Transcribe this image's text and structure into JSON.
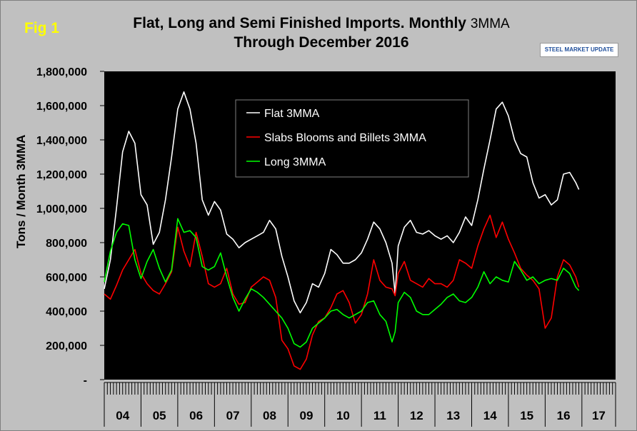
{
  "figure_label": "Fig 1",
  "title_main": "Flat, Long and Semi Finished Imports. Monthly",
  "title_suffix": "3MMA",
  "subtitle": "Through December 2016",
  "logo_text": "STEEL MARKET UPDATE",
  "colors": {
    "background": "#c0c0c0",
    "plot_area": "#000000",
    "flat": "#ffffff",
    "slabs": "#ff0000",
    "long": "#00ff00",
    "figure_label": "#ffff00"
  },
  "chart_data": {
    "type": "line",
    "title": "Flat, Long and Semi Finished Imports. Monthly 3MMA Through December 2016",
    "xlabel": "",
    "ylabel": "Tons / Month 3MMA",
    "ylim": [
      0,
      1800000
    ],
    "y_ticks": [
      0,
      200000,
      400000,
      600000,
      800000,
      1000000,
      1200000,
      1400000,
      1600000,
      1800000
    ],
    "y_tick_labels": [
      "-",
      "200,000",
      "400,000",
      "600,000",
      "800,000",
      "1,000,000",
      "1,200,000",
      "1,400,000",
      "1,600,000",
      "1,800,000"
    ],
    "x_start": "2004-01",
    "x_end": "2016-12",
    "year_labels": [
      "04",
      "05",
      "06",
      "07",
      "08",
      "09",
      "10",
      "11",
      "12",
      "13",
      "14",
      "15",
      "16",
      "17"
    ],
    "grid": false,
    "legend_position": "top-center",
    "series": [
      {
        "name": "Flat 3MMA",
        "color": "#ffffff",
        "points": [
          [
            "2004-01",
            530000
          ],
          [
            "2004-03",
            700000
          ],
          [
            "2004-05",
            1000000
          ],
          [
            "2004-07",
            1330000
          ],
          [
            "2004-09",
            1450000
          ],
          [
            "2004-11",
            1380000
          ],
          [
            "2005-01",
            1080000
          ],
          [
            "2005-03",
            1020000
          ],
          [
            "2005-05",
            790000
          ],
          [
            "2005-07",
            860000
          ],
          [
            "2005-09",
            1050000
          ],
          [
            "2005-11",
            1300000
          ],
          [
            "2006-01",
            1580000
          ],
          [
            "2006-03",
            1680000
          ],
          [
            "2006-05",
            1580000
          ],
          [
            "2006-07",
            1380000
          ],
          [
            "2006-09",
            1050000
          ],
          [
            "2006-11",
            960000
          ],
          [
            "2007-01",
            1040000
          ],
          [
            "2007-03",
            990000
          ],
          [
            "2007-05",
            850000
          ],
          [
            "2007-07",
            820000
          ],
          [
            "2007-09",
            770000
          ],
          [
            "2007-11",
            800000
          ],
          [
            "2008-01",
            820000
          ],
          [
            "2008-03",
            840000
          ],
          [
            "2008-05",
            860000
          ],
          [
            "2008-07",
            930000
          ],
          [
            "2008-09",
            880000
          ],
          [
            "2008-11",
            720000
          ],
          [
            "2009-01",
            600000
          ],
          [
            "2009-03",
            460000
          ],
          [
            "2009-05",
            390000
          ],
          [
            "2009-07",
            450000
          ],
          [
            "2009-09",
            560000
          ],
          [
            "2009-11",
            540000
          ],
          [
            "2010-01",
            620000
          ],
          [
            "2010-03",
            760000
          ],
          [
            "2010-05",
            730000
          ],
          [
            "2010-07",
            680000
          ],
          [
            "2010-09",
            680000
          ],
          [
            "2010-11",
            700000
          ],
          [
            "2011-01",
            740000
          ],
          [
            "2011-03",
            820000
          ],
          [
            "2011-05",
            920000
          ],
          [
            "2011-07",
            880000
          ],
          [
            "2011-09",
            800000
          ],
          [
            "2011-11",
            680000
          ],
          [
            "2011-12",
            500000
          ],
          [
            "2012-01",
            780000
          ],
          [
            "2012-03",
            890000
          ],
          [
            "2012-05",
            930000
          ],
          [
            "2012-07",
            860000
          ],
          [
            "2012-09",
            850000
          ],
          [
            "2012-11",
            870000
          ],
          [
            "2013-01",
            840000
          ],
          [
            "2013-03",
            820000
          ],
          [
            "2013-05",
            840000
          ],
          [
            "2013-07",
            800000
          ],
          [
            "2013-09",
            860000
          ],
          [
            "2013-11",
            950000
          ],
          [
            "2014-01",
            900000
          ],
          [
            "2014-03",
            1050000
          ],
          [
            "2014-05",
            1230000
          ],
          [
            "2014-07",
            1400000
          ],
          [
            "2014-09",
            1580000
          ],
          [
            "2014-11",
            1620000
          ],
          [
            "2015-01",
            1540000
          ],
          [
            "2015-03",
            1400000
          ],
          [
            "2015-05",
            1320000
          ],
          [
            "2015-07",
            1300000
          ],
          [
            "2015-09",
            1150000
          ],
          [
            "2015-11",
            1060000
          ],
          [
            "2016-01",
            1080000
          ],
          [
            "2016-03",
            1020000
          ],
          [
            "2016-05",
            1050000
          ],
          [
            "2016-07",
            1200000
          ],
          [
            "2016-09",
            1210000
          ],
          [
            "2016-11",
            1150000
          ],
          [
            "2016-12",
            1110000
          ]
        ]
      },
      {
        "name": "Slabs Blooms and Billets 3MMA",
        "color": "#ff0000",
        "points": [
          [
            "2004-01",
            500000
          ],
          [
            "2004-03",
            470000
          ],
          [
            "2004-05",
            550000
          ],
          [
            "2004-07",
            640000
          ],
          [
            "2004-09",
            700000
          ],
          [
            "2004-11",
            760000
          ],
          [
            "2005-01",
            620000
          ],
          [
            "2005-03",
            560000
          ],
          [
            "2005-05",
            520000
          ],
          [
            "2005-07",
            500000
          ],
          [
            "2005-09",
            560000
          ],
          [
            "2005-11",
            630000
          ],
          [
            "2006-01",
            890000
          ],
          [
            "2006-03",
            750000
          ],
          [
            "2006-05",
            660000
          ],
          [
            "2006-07",
            860000
          ],
          [
            "2006-09",
            720000
          ],
          [
            "2006-11",
            560000
          ],
          [
            "2007-01",
            540000
          ],
          [
            "2007-03",
            560000
          ],
          [
            "2007-05",
            650000
          ],
          [
            "2007-07",
            500000
          ],
          [
            "2007-09",
            440000
          ],
          [
            "2007-11",
            450000
          ],
          [
            "2008-01",
            540000
          ],
          [
            "2008-03",
            570000
          ],
          [
            "2008-05",
            600000
          ],
          [
            "2008-07",
            580000
          ],
          [
            "2008-09",
            480000
          ],
          [
            "2008-11",
            230000
          ],
          [
            "2009-01",
            180000
          ],
          [
            "2009-03",
            80000
          ],
          [
            "2009-05",
            60000
          ],
          [
            "2009-07",
            120000
          ],
          [
            "2009-09",
            260000
          ],
          [
            "2009-11",
            340000
          ],
          [
            "2010-01",
            360000
          ],
          [
            "2010-03",
            420000
          ],
          [
            "2010-05",
            500000
          ],
          [
            "2010-07",
            520000
          ],
          [
            "2010-09",
            450000
          ],
          [
            "2010-11",
            330000
          ],
          [
            "2011-01",
            380000
          ],
          [
            "2011-03",
            500000
          ],
          [
            "2011-05",
            700000
          ],
          [
            "2011-07",
            580000
          ],
          [
            "2011-09",
            540000
          ],
          [
            "2011-11",
            530000
          ],
          [
            "2011-12",
            490000
          ],
          [
            "2012-01",
            620000
          ],
          [
            "2012-03",
            690000
          ],
          [
            "2012-05",
            580000
          ],
          [
            "2012-07",
            560000
          ],
          [
            "2012-09",
            540000
          ],
          [
            "2012-11",
            590000
          ],
          [
            "2013-01",
            560000
          ],
          [
            "2013-03",
            560000
          ],
          [
            "2013-05",
            540000
          ],
          [
            "2013-07",
            580000
          ],
          [
            "2013-09",
            700000
          ],
          [
            "2013-11",
            680000
          ],
          [
            "2014-01",
            650000
          ],
          [
            "2014-03",
            780000
          ],
          [
            "2014-05",
            880000
          ],
          [
            "2014-07",
            960000
          ],
          [
            "2014-09",
            830000
          ],
          [
            "2014-11",
            920000
          ],
          [
            "2015-01",
            820000
          ],
          [
            "2015-03",
            740000
          ],
          [
            "2015-05",
            650000
          ],
          [
            "2015-07",
            610000
          ],
          [
            "2015-09",
            580000
          ],
          [
            "2015-11",
            530000
          ],
          [
            "2016-01",
            300000
          ],
          [
            "2016-03",
            360000
          ],
          [
            "2016-05",
            600000
          ],
          [
            "2016-07",
            700000
          ],
          [
            "2016-09",
            670000
          ],
          [
            "2016-11",
            600000
          ],
          [
            "2016-12",
            540000
          ]
        ]
      },
      {
        "name": "Long 3MMA",
        "color": "#00ff00",
        "points": [
          [
            "2004-01",
            570000
          ],
          [
            "2004-03",
            750000
          ],
          [
            "2004-05",
            860000
          ],
          [
            "2004-07",
            910000
          ],
          [
            "2004-09",
            900000
          ],
          [
            "2004-11",
            700000
          ],
          [
            "2005-01",
            590000
          ],
          [
            "2005-03",
            690000
          ],
          [
            "2005-05",
            760000
          ],
          [
            "2005-07",
            650000
          ],
          [
            "2005-09",
            570000
          ],
          [
            "2005-11",
            640000
          ],
          [
            "2006-01",
            940000
          ],
          [
            "2006-03",
            860000
          ],
          [
            "2006-05",
            870000
          ],
          [
            "2006-07",
            830000
          ],
          [
            "2006-09",
            660000
          ],
          [
            "2006-11",
            640000
          ],
          [
            "2007-01",
            660000
          ],
          [
            "2007-03",
            740000
          ],
          [
            "2007-05",
            600000
          ],
          [
            "2007-07",
            480000
          ],
          [
            "2007-09",
            400000
          ],
          [
            "2007-11",
            470000
          ],
          [
            "2008-01",
            530000
          ],
          [
            "2008-03",
            510000
          ],
          [
            "2008-05",
            480000
          ],
          [
            "2008-07",
            440000
          ],
          [
            "2008-09",
            400000
          ],
          [
            "2008-11",
            360000
          ],
          [
            "2009-01",
            300000
          ],
          [
            "2009-03",
            210000
          ],
          [
            "2009-05",
            190000
          ],
          [
            "2009-07",
            220000
          ],
          [
            "2009-09",
            300000
          ],
          [
            "2009-11",
            330000
          ],
          [
            "2010-01",
            360000
          ],
          [
            "2010-03",
            400000
          ],
          [
            "2010-05",
            410000
          ],
          [
            "2010-07",
            380000
          ],
          [
            "2010-09",
            360000
          ],
          [
            "2010-11",
            380000
          ],
          [
            "2011-01",
            400000
          ],
          [
            "2011-03",
            450000
          ],
          [
            "2011-05",
            460000
          ],
          [
            "2011-07",
            380000
          ],
          [
            "2011-09",
            340000
          ],
          [
            "2011-11",
            220000
          ],
          [
            "2011-12",
            280000
          ],
          [
            "2012-01",
            450000
          ],
          [
            "2012-03",
            510000
          ],
          [
            "2012-05",
            480000
          ],
          [
            "2012-07",
            400000
          ],
          [
            "2012-09",
            380000
          ],
          [
            "2012-11",
            380000
          ],
          [
            "2013-01",
            410000
          ],
          [
            "2013-03",
            440000
          ],
          [
            "2013-05",
            480000
          ],
          [
            "2013-07",
            500000
          ],
          [
            "2013-09",
            460000
          ],
          [
            "2013-11",
            450000
          ],
          [
            "2014-01",
            480000
          ],
          [
            "2014-03",
            540000
          ],
          [
            "2014-05",
            630000
          ],
          [
            "2014-07",
            560000
          ],
          [
            "2014-09",
            600000
          ],
          [
            "2014-11",
            580000
          ],
          [
            "2015-01",
            570000
          ],
          [
            "2015-03",
            690000
          ],
          [
            "2015-05",
            640000
          ],
          [
            "2015-07",
            580000
          ],
          [
            "2015-09",
            600000
          ],
          [
            "2015-11",
            560000
          ],
          [
            "2016-01",
            580000
          ],
          [
            "2016-03",
            590000
          ],
          [
            "2016-05",
            580000
          ],
          [
            "2016-07",
            650000
          ],
          [
            "2016-09",
            620000
          ],
          [
            "2016-11",
            540000
          ],
          [
            "2016-12",
            520000
          ]
        ]
      }
    ]
  }
}
